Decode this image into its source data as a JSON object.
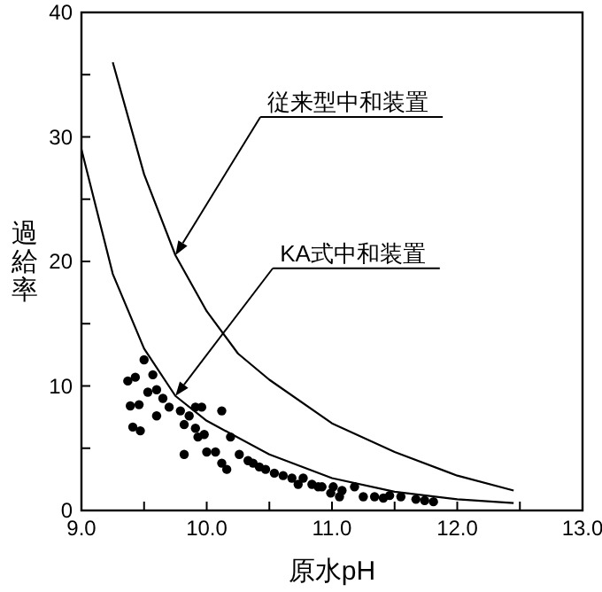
{
  "chart_data": {
    "type": "scatter",
    "xlabel": "原水pH",
    "ylabel": "過給率",
    "xlim": [
      9.0,
      13.0
    ],
    "ylim": [
      0,
      40
    ],
    "xticks": [
      {
        "value": 9.0,
        "label": "9.0"
      },
      {
        "value": 9.5,
        "label": null
      },
      {
        "value": 10.0,
        "label": "10.0"
      },
      {
        "value": 10.5,
        "label": null
      },
      {
        "value": 11.0,
        "label": "11.0"
      },
      {
        "value": 11.5,
        "label": null
      },
      {
        "value": 12.0,
        "label": "12.0"
      },
      {
        "value": 12.5,
        "label": null
      },
      {
        "value": 13.0,
        "label": "13.0"
      }
    ],
    "yticks": [
      0,
      {
        "value": 5,
        "label": null
      },
      10,
      {
        "value": 15,
        "label": null
      },
      20,
      {
        "value": 25,
        "label": null
      },
      30,
      {
        "value": 35,
        "label": null
      },
      40
    ],
    "grid": false,
    "series": [
      {
        "type": "line",
        "color": "#000000",
        "marker": "none",
        "line_style": "solid",
        "x": [
          9.25,
          9.5,
          9.75,
          10.0,
          10.25,
          10.5,
          11.0,
          11.5,
          12.0,
          12.45
        ],
        "values": [
          36,
          27,
          20.5,
          16,
          12.6,
          10.5,
          7,
          4.7,
          2.8,
          1.6
        ]
      },
      {
        "type": "line",
        "color": "#000000",
        "marker": "none",
        "line_style": "solid",
        "x": [
          9.0,
          9.25,
          9.5,
          9.75,
          10.0,
          10.5,
          11.0,
          11.5,
          12.0,
          12.45
        ],
        "values": [
          29,
          19,
          13,
          9.2,
          7.2,
          4.5,
          2.6,
          1.5,
          0.9,
          0.6
        ]
      },
      {
        "color": "#000000",
        "marker": "circle",
        "x": [
          9.5,
          9.37,
          9.43,
          9.57,
          9.39,
          9.46,
          9.41,
          9.47,
          9.53,
          9.6,
          9.65,
          9.6,
          9.7,
          9.79,
          9.82,
          9.86,
          9.91,
          9.96,
          9.91,
          9.93,
          9.98,
          9.82,
          10.0,
          10.07,
          10.12,
          10.12,
          10.16,
          10.19,
          10.26,
          10.33,
          10.37,
          10.42,
          10.47,
          10.54,
          10.61,
          10.68,
          10.73,
          10.77,
          10.84,
          10.89,
          11.01,
          11.06,
          10.92,
          10.99,
          11.08,
          11.18,
          11.25,
          11.34,
          11.41,
          11.46,
          11.55,
          11.67,
          11.74,
          11.81
        ],
        "values": [
          12.1,
          10.4,
          10.7,
          10.9,
          8.4,
          8.5,
          6.7,
          6.4,
          9.5,
          9.7,
          9.0,
          7.6,
          8.3,
          8.0,
          6.9,
          7.6,
          8.3,
          8.3,
          6.6,
          5.9,
          6.1,
          4.5,
          4.7,
          4.7,
          8.0,
          3.8,
          3.3,
          5.9,
          4.5,
          4.0,
          3.8,
          3.5,
          3.3,
          3.0,
          2.8,
          2.6,
          2.1,
          2.6,
          2.1,
          1.9,
          1.9,
          1.1,
          1.9,
          1.4,
          1.6,
          1.9,
          1.1,
          1.1,
          1.0,
          1.2,
          1.1,
          0.9,
          0.8,
          0.7
        ]
      }
    ],
    "annotations": [
      {
        "text": "従来型中和装置",
        "x": 9.75,
        "y": 20.5
      },
      {
        "text": "KA式中和装置",
        "x": 9.75,
        "y": 9.2
      }
    ]
  }
}
